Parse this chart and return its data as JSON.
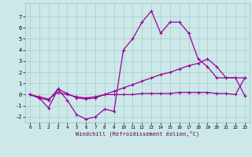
{
  "hours": [
    0,
    1,
    2,
    3,
    4,
    5,
    6,
    7,
    8,
    9,
    10,
    11,
    12,
    13,
    14,
    15,
    16,
    17,
    18,
    19,
    20,
    21,
    22,
    23
  ],
  "line1": [
    0,
    -0.3,
    -1.2,
    0.5,
    -0.5,
    -1.8,
    -2.2,
    -2.0,
    -1.3,
    -1.5,
    4.0,
    5.0,
    6.5,
    7.5,
    5.5,
    6.5,
    6.5,
    5.5,
    3.2,
    2.5,
    1.5,
    1.5,
    1.5,
    -0.1
  ],
  "line2": [
    0.0,
    -0.3,
    -0.5,
    0.5,
    0.1,
    -0.3,
    -0.4,
    -0.3,
    0.0,
    0.3,
    0.6,
    0.9,
    1.2,
    1.5,
    1.8,
    2.0,
    2.3,
    2.6,
    2.8,
    3.2,
    2.5,
    1.5,
    1.5,
    1.5
  ],
  "line3": [
    0.0,
    -0.2,
    -0.4,
    0.2,
    0.0,
    -0.2,
    -0.3,
    -0.2,
    0.0,
    0.0,
    0.0,
    0.0,
    0.1,
    0.1,
    0.1,
    0.1,
    0.2,
    0.2,
    0.2,
    0.2,
    0.1,
    0.1,
    0.0,
    1.5
  ],
  "line_color": "#990099",
  "bg_color": "#cce8e8",
  "grid_color": "#aacccc",
  "xlabel": "Windchill (Refroidissement éolien,°C)",
  "ylim": [
    -2.5,
    8.2
  ],
  "xlim": [
    -0.5,
    23.5
  ],
  "yticks": [
    -2,
    -1,
    0,
    1,
    2,
    3,
    4,
    5,
    6,
    7
  ],
  "xticks": [
    0,
    1,
    2,
    3,
    4,
    5,
    6,
    7,
    8,
    9,
    10,
    11,
    12,
    13,
    14,
    15,
    16,
    17,
    18,
    19,
    20,
    21,
    22,
    23
  ],
  "markersize": 3.5,
  "linewidth": 0.9
}
